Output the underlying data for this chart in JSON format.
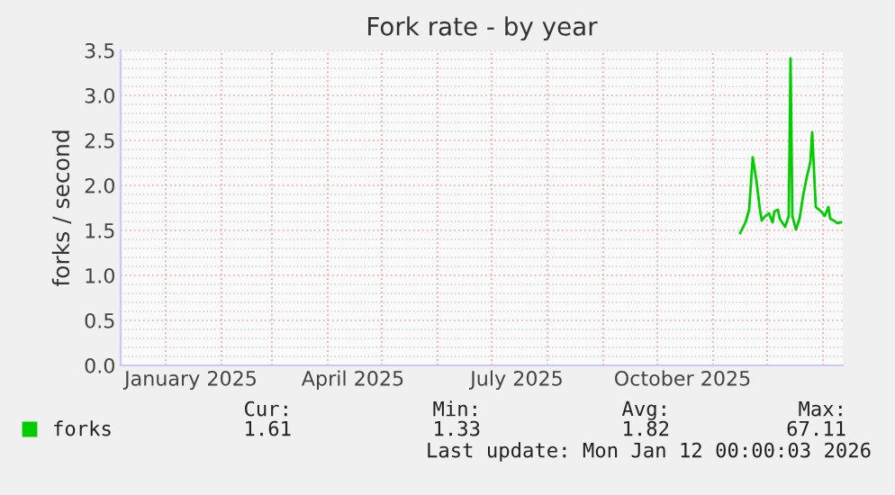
{
  "chart_data": {
    "type": "line",
    "title": "Fork rate - by year",
    "ylabel": "forks / second",
    "x": [
      "2025-11-16",
      "2025-11-19",
      "2025-11-21",
      "2025-11-23",
      "2025-11-25",
      "2025-11-27",
      "2025-11-28",
      "2025-11-30",
      "2025-12-02",
      "2025-12-04",
      "2025-12-05",
      "2025-12-07",
      "2025-12-08",
      "2025-12-11",
      "2025-12-13",
      "2025-12-14",
      "2025-12-15",
      "2025-12-17",
      "2025-12-19",
      "2025-12-21",
      "2025-12-23",
      "2025-12-25",
      "2025-12-26",
      "2025-12-28",
      "2025-12-31",
      "2026-01-02",
      "2026-01-04",
      "2026-01-05",
      "2026-01-07",
      "2026-01-09",
      "2026-01-11"
    ],
    "series": [
      {
        "name": "forks",
        "color": "#00cc00",
        "values": [
          1.47,
          1.59,
          1.73,
          2.31,
          2.06,
          1.73,
          1.61,
          1.66,
          1.69,
          1.59,
          1.71,
          1.73,
          1.63,
          1.54,
          1.66,
          3.41,
          1.66,
          1.51,
          1.63,
          1.89,
          2.09,
          2.26,
          2.59,
          1.76,
          1.71,
          1.66,
          1.76,
          1.63,
          1.61,
          1.58,
          1.59
        ]
      }
    ],
    "xlim": [
      "2024-12-07",
      "2026-01-12"
    ],
    "xticks": [
      {
        "value": "2025-01-15",
        "label": "January 2025"
      },
      {
        "value": "2025-04-15",
        "label": "April 2025"
      },
      {
        "value": "2025-07-15",
        "label": "July 2025"
      },
      {
        "value": "2025-10-15",
        "label": "October 2025"
      }
    ],
    "ylim": [
      0,
      3.5
    ],
    "yticks": [
      {
        "value": 0,
        "label": "0.0"
      },
      {
        "value": 0.5,
        "label": "0.5"
      },
      {
        "value": 1,
        "label": "1.0"
      },
      {
        "value": 1.5,
        "label": "1.5"
      },
      {
        "value": 2,
        "label": "2.0"
      },
      {
        "value": 2.5,
        "label": "2.5"
      },
      {
        "value": 3,
        "label": "3.0"
      },
      {
        "value": 3.5,
        "label": "3.5"
      }
    ],
    "grid": true,
    "legend": "bottom left",
    "annotations": [
      "Cur: 1.61",
      "Min: 1.33",
      "Avg: 1.82",
      "Max: 67.11",
      "Last update: Mon Jan 12 00:00:03 2026"
    ]
  }
}
